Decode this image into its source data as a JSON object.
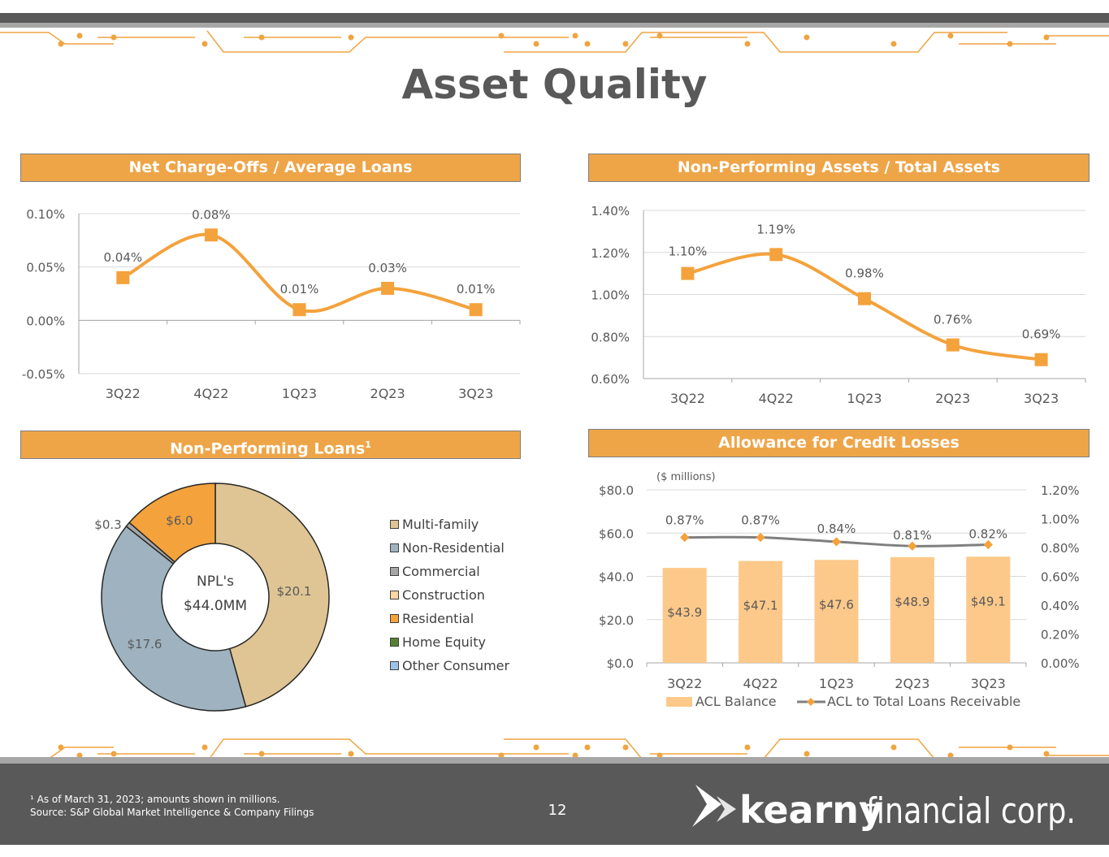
{
  "page": {
    "title": "Asset Quality",
    "page_number": "12",
    "footnote_line1": "¹ As of March 31, 2023; amounts shown in millions.",
    "footnote_line2": "Source: S&P Global Market Intelligence & Company Filings",
    "logo_bold": "kearny",
    "logo_light": "financial corp."
  },
  "colors": {
    "accent": "#eea548",
    "series_orange": "#f4a23c",
    "dark_gray": "#595959",
    "acl_bar": "#fcc98a"
  },
  "panels": {
    "nco": {
      "title": "Net Charge-Offs / Average Loans"
    },
    "npa": {
      "title": "Non-Performing Assets / Total Assets"
    },
    "npl": {
      "title": "Non-Performing Loans",
      "title_sup": "1",
      "center_line1": "NPL's",
      "center_line2": "$44.0MM"
    },
    "acl": {
      "title": "Allowance for Credit Losses",
      "note": "($ millions)"
    }
  },
  "chart_data": [
    {
      "id": "nco",
      "type": "line",
      "title": "Net Charge-Offs / Average Loans",
      "categories": [
        "3Q22",
        "4Q22",
        "1Q23",
        "2Q23",
        "3Q23"
      ],
      "values": [
        0.04,
        0.08,
        0.01,
        0.03,
        0.01
      ],
      "labels": [
        "0.04%",
        "0.08%",
        "0.01%",
        "0.03%",
        "0.01%"
      ],
      "ylim": [
        -0.05,
        0.1
      ],
      "yticks": [
        0.1,
        0.05,
        0.0,
        -0.05
      ],
      "ytick_labels": [
        "0.10%",
        "0.05%",
        "0.00%",
        "-0.05%"
      ],
      "grid": true
    },
    {
      "id": "npa",
      "type": "line",
      "title": "Non-Performing Assets / Total Assets",
      "categories": [
        "3Q22",
        "4Q22",
        "1Q23",
        "2Q23",
        "3Q23"
      ],
      "values": [
        1.1,
        1.19,
        0.98,
        0.76,
        0.69
      ],
      "labels": [
        "1.10%",
        "1.19%",
        "0.98%",
        "0.76%",
        "0.69%"
      ],
      "ylim": [
        0.6,
        1.4
      ],
      "yticks": [
        1.4,
        1.2,
        1.0,
        0.8,
        0.6
      ],
      "ytick_labels": [
        "1.40%",
        "1.20%",
        "1.00%",
        "0.80%",
        "0.60%"
      ],
      "grid": true
    },
    {
      "id": "npl",
      "type": "pie",
      "title": "Non-Performing Loans",
      "center_label": "NPL's $44.0MM",
      "slices": [
        {
          "name": "Multi-family",
          "value": 20.1,
          "label": "$20.1",
          "color": "#dfc594"
        },
        {
          "name": "Non-Residential",
          "value": 17.6,
          "label": "$17.6",
          "color": "#9eb3bf"
        },
        {
          "name": "Commercial",
          "value": 0.3,
          "label": "$0.3",
          "color": "#a6a6a6"
        },
        {
          "name": "Construction",
          "value": 0,
          "label": "",
          "color": "#fcd5a4"
        },
        {
          "name": "Residential",
          "value": 6.0,
          "label": "$6.0",
          "color": "#f4a23c"
        },
        {
          "name": "Home Equity",
          "value": 0,
          "label": "",
          "color": "#548235"
        },
        {
          "name": "Other Consumer",
          "value": 0,
          "label": "",
          "color": "#9dc3e6"
        }
      ],
      "legend_position": "right"
    },
    {
      "id": "acl",
      "type": "bar",
      "title": "Allowance for Credit Losses",
      "categories": [
        "3Q22",
        "4Q22",
        "1Q23",
        "2Q23",
        "3Q23"
      ],
      "series": [
        {
          "name": "ACL Balance",
          "type": "bar",
          "axis": "left",
          "values": [
            43.9,
            47.1,
            47.6,
            48.9,
            49.1
          ],
          "labels": [
            "$43.9",
            "$47.1",
            "$47.6",
            "$48.9",
            "$49.1"
          ]
        },
        {
          "name": "ACL to Total Loans Receivable",
          "type": "line",
          "axis": "right",
          "values": [
            0.87,
            0.87,
            0.84,
            0.81,
            0.82
          ],
          "labels": [
            "0.87%",
            "0.87%",
            "0.84%",
            "0.81%",
            "0.82%"
          ]
        }
      ],
      "ylim": [
        0,
        80
      ],
      "yticks": [
        80,
        60,
        40,
        20,
        0
      ],
      "ytick_labels": [
        "$80.0",
        "$60.0",
        "$40.0",
        "$20.0",
        "$0.0"
      ],
      "y2lim": [
        0,
        1.2
      ],
      "y2ticks": [
        1.2,
        1.0,
        0.8,
        0.6,
        0.4,
        0.2,
        0.0
      ],
      "y2tick_labels": [
        "1.20%",
        "1.00%",
        "0.80%",
        "0.60%",
        "0.40%",
        "0.20%",
        "0.00%"
      ],
      "ylabel": "($ millions)",
      "legend_position": "bottom",
      "grid": true
    }
  ]
}
